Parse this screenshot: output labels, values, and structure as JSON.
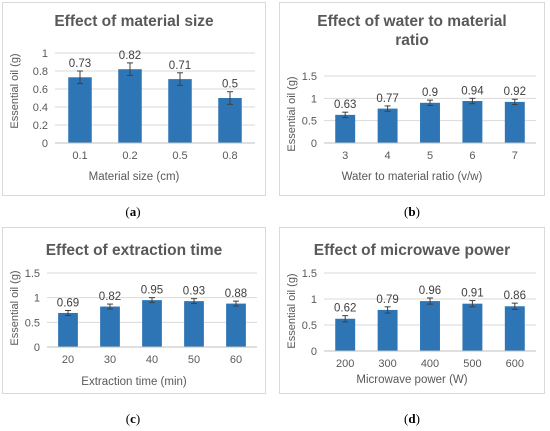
{
  "panel_labels": [
    "a",
    "b",
    "c",
    "d"
  ],
  "bar_color": "#2e75b6",
  "chart_data": [
    {
      "type": "bar",
      "title": "Effect of material size",
      "xlabel": "Material size (cm)",
      "ylabel": "Essential oil (g)",
      "categories": [
        "0.1",
        "0.2",
        "0.5",
        "0.8"
      ],
      "values": [
        0.73,
        0.82,
        0.71,
        0.5
      ],
      "value_labels": [
        "0.73",
        "0.82",
        "0.71",
        "0.5"
      ],
      "errors": [
        0.07,
        0.07,
        0.07,
        0.07
      ],
      "ylim": [
        0,
        1
      ],
      "yticks": [
        "0",
        "0.2",
        "0.4",
        "0.6",
        "0.8",
        "1"
      ],
      "grid": true
    },
    {
      "type": "bar",
      "title": "Effect of water to material ratio",
      "xlabel": "Water to material ratio (v/w)",
      "ylabel": "Essential oil (g)",
      "categories": [
        "3",
        "4",
        "5",
        "6",
        "7"
      ],
      "values": [
        0.63,
        0.77,
        0.9,
        0.94,
        0.92
      ],
      "value_labels": [
        "0.63",
        "0.77",
        "0.9",
        "0.94",
        "0.92"
      ],
      "errors": [
        0.06,
        0.06,
        0.06,
        0.06,
        0.06
      ],
      "ylim": [
        0,
        1.5
      ],
      "yticks": [
        "0",
        "0.5",
        "1",
        "1.5"
      ],
      "grid": true
    },
    {
      "type": "bar",
      "title": "Effect of extraction time",
      "xlabel": "Extraction time (min)",
      "ylabel": "Essential oil (g)",
      "categories": [
        "20",
        "30",
        "40",
        "50",
        "60"
      ],
      "values": [
        0.69,
        0.82,
        0.95,
        0.93,
        0.88
      ],
      "value_labels": [
        "0.69",
        "0.82",
        "0.95",
        "0.93",
        "0.88"
      ],
      "errors": [
        0.05,
        0.05,
        0.05,
        0.05,
        0.05
      ],
      "ylim": [
        0,
        1.5
      ],
      "yticks": [
        "0",
        "0.5",
        "1",
        "1.5"
      ],
      "grid": true
    },
    {
      "type": "bar",
      "title": "Effect of microwave power",
      "xlabel": "Microwave power (W)",
      "ylabel": "Essential oil (g)",
      "categories": [
        "200",
        "300",
        "400",
        "500",
        "600"
      ],
      "values": [
        0.62,
        0.79,
        0.96,
        0.91,
        0.86
      ],
      "value_labels": [
        "0.62",
        "0.79",
        "0.96",
        "0.91",
        "0.86"
      ],
      "errors": [
        0.06,
        0.06,
        0.06,
        0.06,
        0.06
      ],
      "ylim": [
        0,
        1.5
      ],
      "yticks": [
        "0",
        "0.5",
        "1",
        "1.5"
      ],
      "grid": true
    }
  ]
}
